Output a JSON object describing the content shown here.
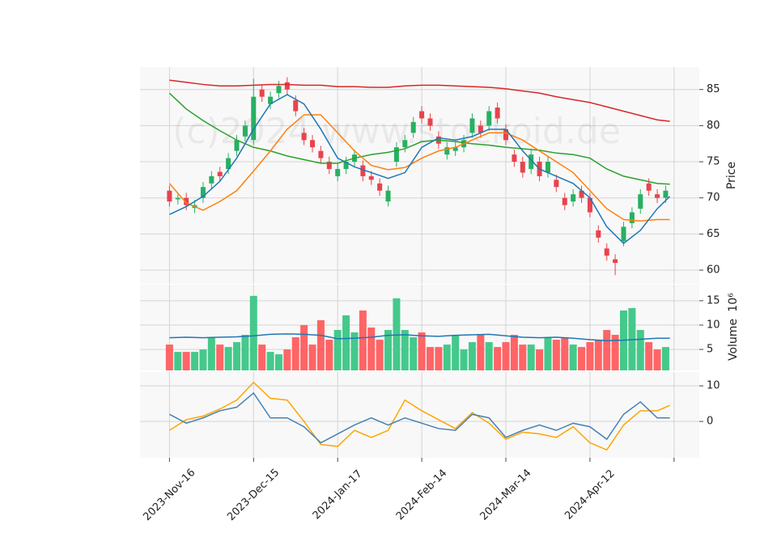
{
  "chart_data": [
    {
      "type": "candlestick",
      "watermark": "(c)2024 www.stockoid.de",
      "ylabel": "Price",
      "x": [
        0,
        2,
        4,
        6,
        8,
        10,
        12,
        14,
        16,
        18,
        20,
        22,
        24,
        26,
        28,
        30,
        32,
        34,
        36,
        38,
        40,
        42,
        44,
        46,
        48,
        50,
        52,
        54,
        56,
        58,
        60,
        62,
        64,
        66,
        68,
        70,
        72,
        74,
        76,
        78,
        80,
        82,
        84,
        86,
        88,
        90,
        92,
        94,
        96,
        98,
        100,
        102,
        104,
        106,
        108,
        110,
        112,
        114,
        116,
        118
      ],
      "open": [
        71,
        69.8,
        70,
        68.6,
        70,
        72,
        73.6,
        74,
        76.5,
        78.5,
        78,
        85,
        83,
        84.5,
        86,
        83.5,
        79,
        78,
        76.5,
        75,
        73,
        74,
        75,
        74.5,
        73,
        72,
        69.5,
        75,
        77,
        79,
        82,
        81,
        78.5,
        76,
        76.5,
        77,
        79,
        80,
        80,
        82.5,
        79.5,
        76,
        75,
        74,
        75,
        73.5,
        72.5,
        70,
        69.5,
        71,
        70,
        65.5,
        63,
        61.5,
        64,
        66.5,
        68.5,
        72,
        70.5,
        70
      ],
      "high": [
        71.7,
        70.5,
        70.7,
        69.7,
        72.2,
        73.7,
        74.3,
        76.2,
        78.7,
        80.7,
        86.5,
        85.7,
        84.7,
        86.2,
        86.7,
        84.2,
        79.7,
        78.7,
        77.2,
        75.7,
        74.7,
        75.7,
        76.7,
        75.2,
        73.7,
        72.7,
        71.7,
        77.7,
        78.7,
        81.2,
        82.7,
        81.7,
        79.2,
        77.7,
        77.7,
        78.7,
        81.7,
        80.7,
        82.7,
        83.2,
        80.2,
        76.7,
        75.7,
        76.7,
        75.7,
        75.7,
        73.2,
        70.7,
        71.2,
        71.7,
        70.7,
        66.2,
        63.7,
        62.2,
        66.7,
        68.7,
        71.2,
        72.7,
        71.2,
        71.7
      ],
      "low": [
        68.8,
        69.1,
        68.3,
        67.9,
        69.3,
        71.3,
        72.3,
        73.3,
        75.8,
        77.8,
        77.3,
        83.3,
        82.3,
        83.8,
        84.3,
        81.3,
        77.3,
        76.3,
        74.8,
        73.3,
        72.3,
        73.3,
        74.3,
        72.3,
        71.8,
        70.3,
        68.8,
        74.3,
        76.3,
        78.3,
        80.3,
        79.3,
        76.8,
        75.3,
        75.8,
        76.3,
        78.3,
        78.3,
        79.3,
        80.3,
        77.3,
        74.3,
        72.8,
        73.3,
        72.3,
        72.8,
        70.8,
        68.3,
        68.8,
        69.3,
        67.3,
        63.8,
        61.3,
        59.3,
        63.3,
        65.8,
        67.8,
        70.3,
        69.3,
        69.3
      ],
      "close": [
        69.5,
        70,
        69,
        69,
        71.5,
        73,
        73,
        75.5,
        78,
        80,
        84,
        84,
        84,
        85.5,
        85,
        82,
        78,
        77,
        75.5,
        74,
        74,
        75,
        76,
        73,
        72.5,
        71,
        71,
        77,
        78,
        80.5,
        81,
        80,
        77.5,
        77,
        77,
        78,
        81,
        79,
        82,
        81,
        78,
        75,
        73.5,
        76,
        73,
        75,
        71.5,
        69,
        70.5,
        70,
        68,
        64.5,
        62,
        61,
        66,
        68,
        70.5,
        71,
        70,
        71
      ],
      "up_color": "#27b062",
      "down_color": "#e8434d",
      "overlay_x": [
        0,
        4,
        8,
        12,
        16,
        20,
        24,
        28,
        32,
        36,
        40,
        44,
        48,
        52,
        56,
        60,
        64,
        68,
        72,
        76,
        80,
        84,
        88,
        92,
        96,
        100,
        104,
        108,
        112,
        116,
        119
      ],
      "overlays": [
        {
          "color": "#d62728",
          "values": [
            86.3,
            86,
            85.7,
            85.5,
            85.5,
            85.6,
            85.7,
            85.7,
            85.6,
            85.6,
            85.4,
            85.4,
            85.3,
            85.3,
            85.5,
            85.6,
            85.6,
            85.5,
            85.4,
            85.3,
            85.1,
            84.8,
            84.5,
            84,
            83.6,
            83.2,
            82.6,
            82,
            81.4,
            80.8,
            80.6
          ]
        },
        {
          "color": "#2ca02c",
          "values": [
            84.5,
            82.3,
            80.7,
            79.3,
            78,
            77,
            76.5,
            75.8,
            75.3,
            74.8,
            74.8,
            75.5,
            76,
            76.3,
            76.8,
            77.8,
            78,
            77.8,
            77.5,
            77.3,
            77,
            76.8,
            76.6,
            76.2,
            76,
            75.5,
            74,
            73,
            72.5,
            72,
            71.9
          ]
        },
        {
          "color": "#ff7f0e",
          "values": [
            72,
            69.3,
            68.3,
            69.5,
            71,
            73.7,
            76.5,
            79.5,
            81.5,
            81.5,
            79,
            76.5,
            74.5,
            73.9,
            74.2,
            75.5,
            76.5,
            77,
            78,
            79,
            79,
            78,
            76.5,
            75,
            73.5,
            71,
            68.5,
            67,
            66.8,
            67,
            67
          ]
        },
        {
          "color": "#1f77b4",
          "values": [
            67.7,
            68.8,
            70.2,
            72.3,
            75.5,
            79.5,
            83,
            84.3,
            83,
            79.5,
            75.5,
            74.3,
            73.5,
            72.7,
            73.5,
            77,
            78.3,
            78,
            78.5,
            79.5,
            79.5,
            76.5,
            74,
            73,
            72,
            70,
            66,
            63.7,
            65.5,
            68.5,
            70.2
          ]
        }
      ],
      "xlim": [
        -7,
        126
      ],
      "ylim": [
        58.1,
        88.1
      ],
      "yticks": [
        60,
        65,
        70,
        75,
        80,
        85
      ],
      "grid": true
    },
    {
      "type": "bar",
      "ylabel": "Volume",
      "scale_label": "10⁶",
      "x": [
        0,
        2,
        4,
        6,
        8,
        10,
        12,
        14,
        16,
        18,
        20,
        22,
        24,
        26,
        28,
        30,
        32,
        34,
        36,
        38,
        40,
        42,
        44,
        46,
        48,
        50,
        52,
        54,
        56,
        58,
        60,
        62,
        64,
        66,
        68,
        70,
        72,
        74,
        76,
        78,
        80,
        82,
        84,
        86,
        88,
        90,
        92,
        94,
        96,
        98,
        100,
        102,
        104,
        106,
        108,
        110,
        112,
        114,
        116,
        118
      ],
      "values": [
        6,
        4.5,
        4.5,
        4.5,
        5,
        7.5,
        6,
        5.5,
        6.5,
        8,
        16,
        6,
        4.5,
        4,
        5,
        7.5,
        10,
        6,
        11,
        7,
        9,
        12,
        8.5,
        13,
        9.5,
        7,
        9,
        15.5,
        9,
        7.5,
        8.5,
        5.5,
        5.5,
        6,
        8,
        5,
        6.5,
        8,
        6.5,
        5.5,
        6.5,
        8,
        6,
        6,
        5,
        7.5,
        7,
        7.5,
        6,
        5.5,
        6.5,
        7,
        9,
        8,
        13,
        13.5,
        9,
        6.5,
        5,
        5.5
      ],
      "up_color": "#44c98b",
      "down_color": "#ff6466",
      "line_x": [
        0,
        4,
        8,
        12,
        16,
        20,
        24,
        28,
        32,
        36,
        40,
        44,
        48,
        52,
        56,
        60,
        64,
        68,
        72,
        76,
        80,
        84,
        88,
        92,
        96,
        100,
        104,
        108,
        112,
        116,
        119
      ],
      "line": {
        "color": "#1f77b4",
        "values": [
          7.4,
          7.5,
          7.4,
          7.5,
          7.6,
          7.8,
          8.1,
          8.2,
          8.1,
          7.9,
          7.2,
          7.3,
          7.5,
          7.9,
          8,
          7.8,
          7.7,
          7.9,
          8,
          8.1,
          7.8,
          7.5,
          7.4,
          7.5,
          7.3,
          7,
          6.8,
          6.9,
          7.1,
          7.3,
          7.3
        ]
      },
      "xlim": [
        -7,
        126
      ],
      "ylim": [
        0.7,
        18.3
      ],
      "yticks": [
        5,
        10,
        15
      ],
      "grid": true
    },
    {
      "type": "line",
      "x": [
        0,
        4,
        8,
        12,
        16,
        20,
        24,
        28,
        32,
        36,
        40,
        44,
        48,
        52,
        56,
        60,
        64,
        68,
        72,
        76,
        80,
        84,
        88,
        92,
        96,
        100,
        104,
        108,
        112,
        116,
        119
      ],
      "series": [
        {
          "color": "#ffa500",
          "values": [
            -2.5,
            0.5,
            1.5,
            3.5,
            6,
            11,
            6.5,
            6,
            0,
            -6.5,
            -7,
            -2.5,
            -4.5,
            -2.5,
            6,
            3,
            0.5,
            -2,
            2.5,
            -0.5,
            -5,
            -3,
            -3.5,
            -4.5,
            -1.5,
            -6,
            -8,
            -1,
            3,
            3,
            4.5
          ]
        },
        {
          "color": "#4682b4",
          "values": [
            2,
            -0.5,
            1,
            3,
            4,
            8,
            1,
            1,
            -1.5,
            -6,
            -3.5,
            -1,
            1,
            -1,
            1,
            -0.5,
            -2,
            -2.5,
            2,
            1,
            -4.5,
            -2.5,
            -1,
            -2.5,
            -0.5,
            -1.5,
            -5,
            2,
            5.5,
            1,
            1
          ]
        }
      ],
      "xlim": [
        -7,
        126
      ],
      "ylim": [
        -10.2,
        13.9
      ],
      "yticks": [
        0,
        10
      ],
      "grid": true,
      "xticks": [
        {
          "value": 0,
          "label": "2023-Nov-16"
        },
        {
          "value": 20,
          "label": "2023-Dec-15"
        },
        {
          "value": 40,
          "label": "2024-Jan-17"
        },
        {
          "value": 60,
          "label": "2024-Feb-14"
        },
        {
          "value": 80,
          "label": "2024-Mar-14"
        },
        {
          "value": 100,
          "label": "2024-Apr-12"
        },
        {
          "value": 120,
          "label": null
        }
      ]
    }
  ]
}
